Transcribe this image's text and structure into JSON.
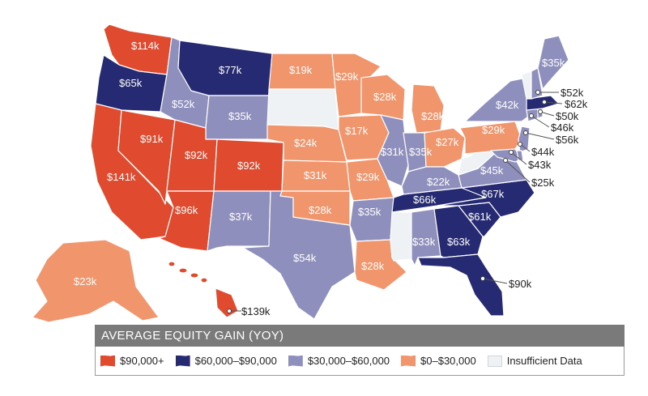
{
  "legend": {
    "title": "AVERAGE EQUITY GAIN (YOY)",
    "items": [
      {
        "label": "$90,000+",
        "color": "#e04a2e"
      },
      {
        "label": "$60,000–$90,000",
        "color": "#262a72"
      },
      {
        "label": "$30,000–$60,000",
        "color": "#8f8fbe"
      },
      {
        "label": "$0–$30,000",
        "color": "#f0956c"
      },
      {
        "label": "Insufficient Data",
        "color": "#eef2f5"
      }
    ]
  },
  "states": {
    "WA": "$114k",
    "OR": "$65k",
    "CA": "$141k",
    "NV": "$91k",
    "ID": "$52k",
    "MT": "$77k",
    "WY": "$35k",
    "UT": "$92k",
    "CO": "$92k",
    "AZ": "$96k",
    "NM": "$37k",
    "TX": "$54k",
    "ND": "$19k",
    "SD": "",
    "NE": "$24k",
    "KS": "$31k",
    "OK": "$28k",
    "MN": "$29k",
    "IA": "$17k",
    "MO": "$29k",
    "AR": "$35k",
    "LA": "$28k",
    "WI": "$28k",
    "IL": "$31k",
    "MI": "$28k",
    "IN": "$35k",
    "OH": "$27k",
    "KY": "$22k",
    "TN": "$66k",
    "MS": "",
    "AL": "$33k",
    "GA": "$63k",
    "FL": "$90k",
    "SC": "$61k",
    "NC": "$67k",
    "VA": "$45k",
    "WV": "",
    "PA": "$29k",
    "NY": "$42k",
    "ME": "$35k",
    "AK": "$23k",
    "HI": "$139k",
    "NH": "$52k",
    "MA": "$62k",
    "RI": "$50k",
    "CT": "$46k",
    "NJ": "$56k",
    "DE": "$44k",
    "MD": "$43k",
    "DC": "$25k"
  },
  "colors": {
    "high": "#e04a2e",
    "upper": "#262a72",
    "mid": "#8f8fbe",
    "low": "#f0956c",
    "none": "#eef2f5",
    "border": "#ffffff"
  }
}
